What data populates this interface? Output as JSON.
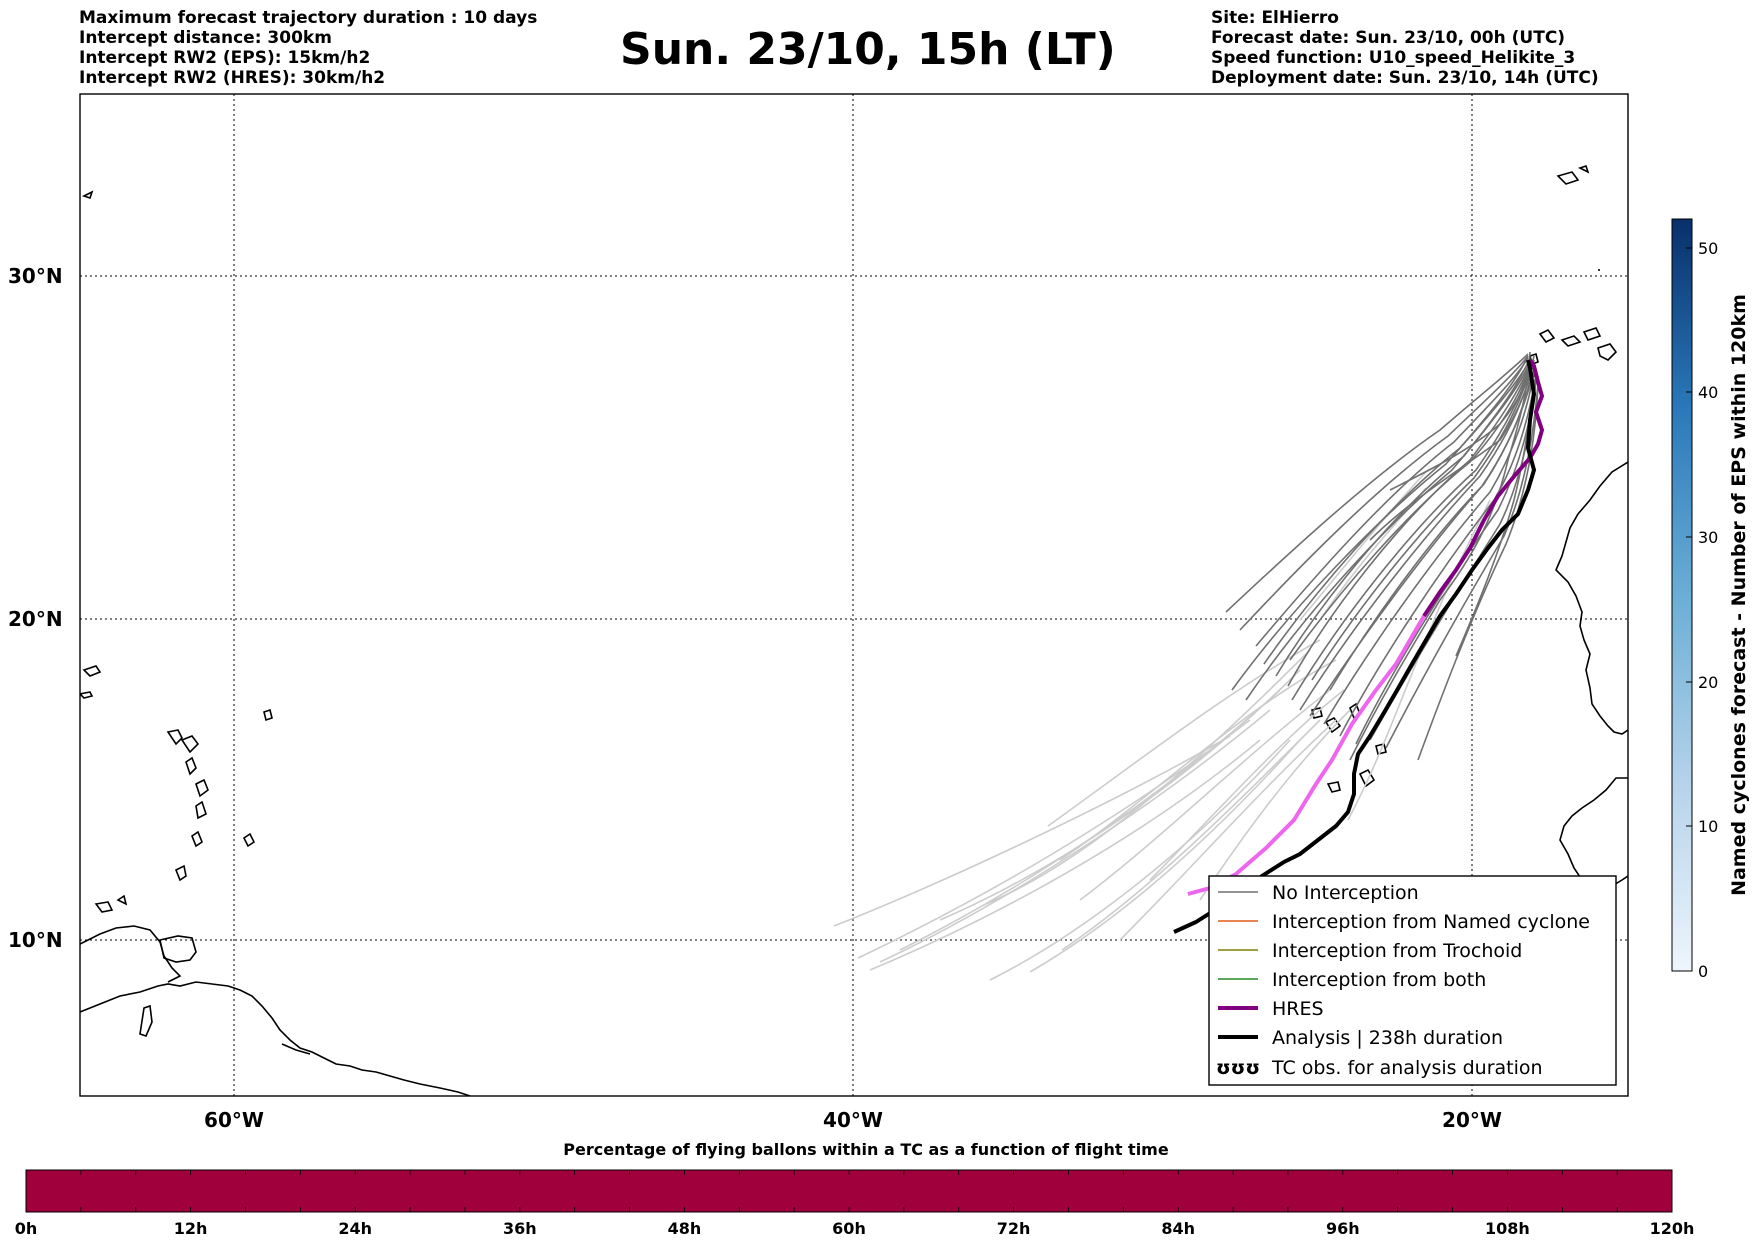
{
  "header": {
    "left_lines": [
      "Maximum forecast trajectory duration : 10 days",
      "Intercept distance: 300km",
      "Intercept RW2 (EPS):  15km/h2",
      "Intercept RW2 (HRES): 30km/h2"
    ],
    "title": "Sun. 23/10, 15h (LT)",
    "right_lines": [
      "Site: ElHierro",
      "Forecast date: Sun. 23/10, 00h (UTC)",
      "Speed function: U10_speed_Helikite_3",
      "Deployment date: Sun. 23/10, 14h (UTC)"
    ]
  },
  "map": {
    "lat_labels": [
      "30°N",
      "20°N",
      "10°N"
    ],
    "lon_labels": [
      "60°W",
      "40°W",
      "20°W"
    ],
    "extent": {
      "lon": [
        -65,
        -15
      ],
      "lat": [
        5,
        34.5
      ]
    },
    "grid": "dotted",
    "colors": {
      "no_interception": "#707070",
      "faded_track": "#cccccc",
      "hres": "#800080",
      "hres_faded": "#ee66ee",
      "analysis": "#000000",
      "named_cyclone": "#e05a1a",
      "trochoid": "#808000",
      "both": "#228b22"
    }
  },
  "legend": {
    "items": [
      {
        "label": "No Interception",
        "color": "#707070",
        "style": "thin"
      },
      {
        "label": "Interception from Named cyclone",
        "color": "#e05a1a",
        "style": "thin"
      },
      {
        "label": "Interception from Trochoid",
        "color": "#808000",
        "style": "thin"
      },
      {
        "label": "Interception from both",
        "color": "#228b22",
        "style": "thin"
      },
      {
        "label": "HRES",
        "color": "#800080",
        "style": "thick"
      },
      {
        "label": "Analysis | 238h duration",
        "color": "#000000",
        "style": "thick"
      },
      {
        "label": "TC obs. for analysis duration",
        "color": "#000000",
        "style": "symbol",
        "symbol": "ʊʊʊ"
      }
    ]
  },
  "colorbar": {
    "label": "Named cyclones forecast - Number of EPS within 120km",
    "ticks": [
      "0",
      "10",
      "20",
      "30",
      "40",
      "50"
    ],
    "range": [
      0,
      52
    ],
    "colors": [
      "#e8f1fa",
      "#08306b"
    ]
  },
  "bottom_bar": {
    "title": "Percentage of flying ballons within a TC as a function of flight time",
    "ticks": [
      "0h",
      "12h",
      "24h",
      "36h",
      "48h",
      "60h",
      "72h",
      "84h",
      "96h",
      "108h",
      "120h"
    ],
    "color": "#a0003c"
  }
}
